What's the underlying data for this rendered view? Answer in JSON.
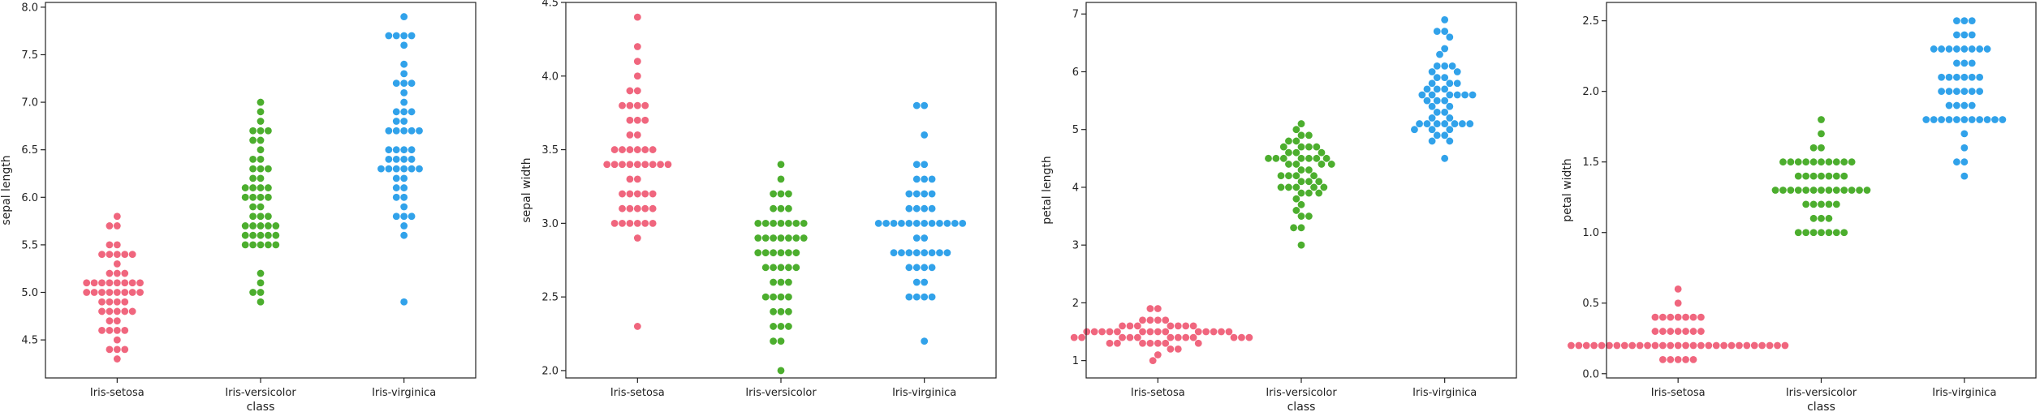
{
  "chart_data": [
    {
      "type": "scatter",
      "subtype": "swarm",
      "categories": [
        "Iris-setosa",
        "Iris-versicolor",
        "Iris-virginica"
      ],
      "xlabel": "class",
      "ylabel": "sepal length",
      "ylim": [
        4.1,
        8.05
      ],
      "yticks": [
        4.5,
        5.0,
        5.5,
        6.0,
        6.5,
        7.0,
        7.5,
        8.0
      ],
      "ytick_decimals": 1,
      "series": [
        {
          "values": [
            4.3,
            4.4,
            4.4,
            4.4,
            4.5,
            4.6,
            4.6,
            4.6,
            4.6,
            4.7,
            4.7,
            4.8,
            4.8,
            4.8,
            4.8,
            4.8,
            4.9,
            4.9,
            4.9,
            4.9,
            5.0,
            5.0,
            5.0,
            5.0,
            5.0,
            5.0,
            5.0,
            5.0,
            5.1,
            5.1,
            5.1,
            5.1,
            5.1,
            5.1,
            5.1,
            5.1,
            5.2,
            5.2,
            5.2,
            5.3,
            5.4,
            5.4,
            5.4,
            5.4,
            5.4,
            5.5,
            5.5,
            5.7,
            5.7,
            5.8
          ]
        },
        {
          "values": [
            4.9,
            5.0,
            5.0,
            5.1,
            5.2,
            5.5,
            5.5,
            5.5,
            5.5,
            5.5,
            5.6,
            5.6,
            5.6,
            5.6,
            5.6,
            5.7,
            5.7,
            5.7,
            5.7,
            5.7,
            5.8,
            5.8,
            5.8,
            5.9,
            5.9,
            6.0,
            6.0,
            6.0,
            6.0,
            6.1,
            6.1,
            6.1,
            6.1,
            6.2,
            6.2,
            6.3,
            6.3,
            6.3,
            6.4,
            6.4,
            6.5,
            6.6,
            6.6,
            6.7,
            6.7,
            6.7,
            6.8,
            6.9,
            7.0
          ]
        },
        {
          "values": [
            4.9,
            5.6,
            5.7,
            5.8,
            5.8,
            5.8,
            5.9,
            6.0,
            6.0,
            6.1,
            6.1,
            6.2,
            6.2,
            6.3,
            6.3,
            6.3,
            6.3,
            6.3,
            6.3,
            6.4,
            6.4,
            6.4,
            6.4,
            6.5,
            6.5,
            6.5,
            6.5,
            6.7,
            6.7,
            6.7,
            6.7,
            6.7,
            6.8,
            6.8,
            6.9,
            6.9,
            6.9,
            7.0,
            7.1,
            7.2,
            7.2,
            7.2,
            7.3,
            7.4,
            7.6,
            7.7,
            7.7,
            7.7,
            7.7,
            7.9
          ]
        }
      ],
      "colors": [
        "#f0667e",
        "#4cae2e",
        "#31a2ea"
      ]
    },
    {
      "type": "scatter",
      "subtype": "swarm",
      "categories": [
        "Iris-setosa",
        "Iris-versicolor",
        "Iris-virginica"
      ],
      "xlabel": "",
      "ylabel": "sepal width",
      "ylim": [
        1.95,
        4.5
      ],
      "yticks": [
        2.0,
        2.5,
        3.0,
        3.5,
        4.0,
        4.5
      ],
      "ytick_decimals": 1,
      "series": [
        {
          "values": [
            2.3,
            2.9,
            3.0,
            3.0,
            3.0,
            3.0,
            3.0,
            3.0,
            3.1,
            3.1,
            3.1,
            3.1,
            3.1,
            3.2,
            3.2,
            3.2,
            3.2,
            3.2,
            3.3,
            3.3,
            3.4,
            3.4,
            3.4,
            3.4,
            3.4,
            3.4,
            3.4,
            3.4,
            3.4,
            3.5,
            3.5,
            3.5,
            3.5,
            3.5,
            3.5,
            3.6,
            3.6,
            3.7,
            3.7,
            3.7,
            3.8,
            3.8,
            3.8,
            3.8,
            3.9,
            3.9,
            4.0,
            4.1,
            4.2,
            4.4
          ]
        },
        {
          "values": [
            2.0,
            2.2,
            2.2,
            2.3,
            2.3,
            2.3,
            2.4,
            2.4,
            2.4,
            2.5,
            2.5,
            2.5,
            2.5,
            2.6,
            2.6,
            2.6,
            2.7,
            2.7,
            2.7,
            2.7,
            2.7,
            2.8,
            2.8,
            2.8,
            2.8,
            2.8,
            2.8,
            2.9,
            2.9,
            2.9,
            2.9,
            2.9,
            2.9,
            2.9,
            3.0,
            3.0,
            3.0,
            3.0,
            3.0,
            3.0,
            3.0,
            3.1,
            3.1,
            3.1,
            3.2,
            3.2,
            3.2,
            3.3,
            3.4
          ]
        },
        {
          "values": [
            2.2,
            2.5,
            2.5,
            2.5,
            2.5,
            2.6,
            2.6,
            2.7,
            2.7,
            2.7,
            2.7,
            2.8,
            2.8,
            2.8,
            2.8,
            2.8,
            2.8,
            2.8,
            2.8,
            2.9,
            2.9,
            3.0,
            3.0,
            3.0,
            3.0,
            3.0,
            3.0,
            3.0,
            3.0,
            3.0,
            3.0,
            3.0,
            3.0,
            3.1,
            3.1,
            3.1,
            3.1,
            3.2,
            3.2,
            3.2,
            3.2,
            3.3,
            3.3,
            3.3,
            3.4,
            3.4,
            3.6,
            3.8,
            3.8
          ]
        }
      ],
      "colors": [
        "#f0667e",
        "#4cae2e",
        "#31a2ea"
      ]
    },
    {
      "type": "scatter",
      "subtype": "swarm",
      "categories": [
        "Iris-setosa",
        "Iris-versicolor",
        "Iris-virginica"
      ],
      "xlabel": "class",
      "ylabel": "petal length",
      "ylim": [
        0.7,
        7.2
      ],
      "yticks": [
        1,
        2,
        3,
        4,
        5,
        6,
        7
      ],
      "ytick_decimals": 0,
      "series": [
        {
          "values": [
            1.0,
            1.1,
            1.2,
            1.2,
            1.3,
            1.3,
            1.3,
            1.3,
            1.3,
            1.3,
            1.3,
            1.4,
            1.4,
            1.4,
            1.4,
            1.4,
            1.4,
            1.4,
            1.4,
            1.4,
            1.4,
            1.4,
            1.4,
            1.5,
            1.5,
            1.5,
            1.5,
            1.5,
            1.5,
            1.5,
            1.5,
            1.5,
            1.5,
            1.5,
            1.5,
            1.5,
            1.5,
            1.6,
            1.6,
            1.6,
            1.6,
            1.6,
            1.6,
            1.6,
            1.7,
            1.7,
            1.7,
            1.7,
            1.9,
            1.9
          ]
        },
        {
          "values": [
            3.0,
            3.3,
            3.3,
            3.5,
            3.5,
            3.6,
            3.7,
            3.8,
            3.9,
            3.9,
            3.9,
            4.0,
            4.0,
            4.0,
            4.0,
            4.0,
            4.1,
            4.1,
            4.1,
            4.2,
            4.2,
            4.2,
            4.2,
            4.3,
            4.3,
            4.4,
            4.4,
            4.4,
            4.4,
            4.5,
            4.5,
            4.5,
            4.5,
            4.5,
            4.5,
            4.5,
            4.6,
            4.6,
            4.6,
            4.7,
            4.7,
            4.7,
            4.7,
            4.8,
            4.8,
            4.9,
            4.9,
            5.0,
            5.1
          ]
        },
        {
          "values": [
            4.5,
            4.8,
            4.8,
            4.9,
            4.9,
            5.0,
            5.0,
            5.0,
            5.1,
            5.1,
            5.1,
            5.1,
            5.1,
            5.1,
            5.1,
            5.2,
            5.2,
            5.3,
            5.3,
            5.4,
            5.4,
            5.5,
            5.5,
            5.5,
            5.6,
            5.6,
            5.6,
            5.6,
            5.6,
            5.6,
            5.7,
            5.7,
            5.7,
            5.8,
            5.8,
            5.8,
            5.9,
            5.9,
            6.0,
            6.0,
            6.1,
            6.1,
            6.1,
            6.3,
            6.4,
            6.6,
            6.7,
            6.7,
            6.9
          ]
        }
      ],
      "colors": [
        "#f0667e",
        "#4cae2e",
        "#31a2ea"
      ]
    },
    {
      "type": "scatter",
      "subtype": "swarm",
      "categories": [
        "Iris-setosa",
        "Iris-versicolor",
        "Iris-virginica"
      ],
      "xlabel": "class",
      "ylabel": "petal width",
      "ylim": [
        -0.03,
        2.63
      ],
      "yticks": [
        0.0,
        0.5,
        1.0,
        1.5,
        2.0,
        2.5
      ],
      "ytick_decimals": 1,
      "series": [
        {
          "values": [
            0.1,
            0.1,
            0.1,
            0.1,
            0.1,
            0.2,
            0.2,
            0.2,
            0.2,
            0.2,
            0.2,
            0.2,
            0.2,
            0.2,
            0.2,
            0.2,
            0.2,
            0.2,
            0.2,
            0.2,
            0.2,
            0.2,
            0.2,
            0.2,
            0.2,
            0.2,
            0.2,
            0.2,
            0.2,
            0.2,
            0.2,
            0.2,
            0.2,
            0.2,
            0.3,
            0.3,
            0.3,
            0.3,
            0.3,
            0.3,
            0.3,
            0.4,
            0.4,
            0.4,
            0.4,
            0.4,
            0.4,
            0.4,
            0.5,
            0.6
          ]
        },
        {
          "values": [
            1.0,
            1.0,
            1.0,
            1.0,
            1.0,
            1.0,
            1.0,
            1.1,
            1.1,
            1.1,
            1.2,
            1.2,
            1.2,
            1.2,
            1.2,
            1.3,
            1.3,
            1.3,
            1.3,
            1.3,
            1.3,
            1.3,
            1.3,
            1.3,
            1.3,
            1.3,
            1.3,
            1.3,
            1.4,
            1.4,
            1.4,
            1.4,
            1.4,
            1.4,
            1.4,
            1.5,
            1.5,
            1.5,
            1.5,
            1.5,
            1.5,
            1.5,
            1.5,
            1.5,
            1.5,
            1.6,
            1.6,
            1.7,
            1.8
          ]
        },
        {
          "values": [
            1.4,
            1.5,
            1.5,
            1.6,
            1.7,
            1.8,
            1.8,
            1.8,
            1.8,
            1.8,
            1.8,
            1.8,
            1.8,
            1.8,
            1.8,
            1.8,
            1.9,
            1.9,
            1.9,
            1.9,
            2.0,
            2.0,
            2.0,
            2.0,
            2.0,
            2.0,
            2.1,
            2.1,
            2.1,
            2.1,
            2.1,
            2.1,
            2.2,
            2.2,
            2.2,
            2.3,
            2.3,
            2.3,
            2.3,
            2.3,
            2.3,
            2.3,
            2.3,
            2.4,
            2.4,
            2.4,
            2.5,
            2.5,
            2.5
          ]
        }
      ],
      "colors": [
        "#f0667e",
        "#4cae2e",
        "#31a2ea"
      ]
    }
  ]
}
